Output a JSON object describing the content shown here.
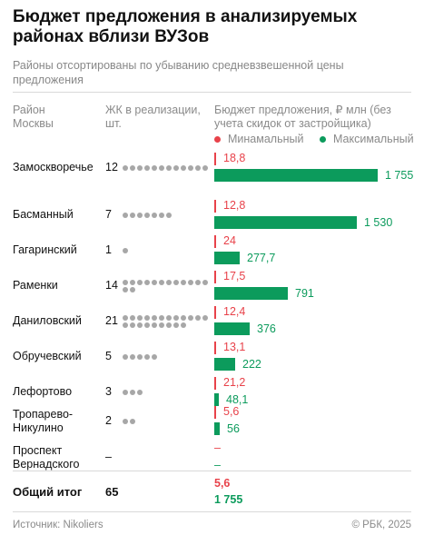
{
  "title": "Бюджет предложения в анализируемых районах вблизи ВУЗов",
  "subtitle": "Районы отсортированы по убыванию средневзвешенной цены предложения",
  "headers": {
    "district": "Район Москвы",
    "complexes": "ЖК в реализации, шт.",
    "budget": "Бюджет предложения, ₽ млн (без учета скидок от застройщика)"
  },
  "legend": {
    "min_label": "Минамальный",
    "max_label": "Максимальный",
    "min_color": "#e8424a",
    "max_color": "#0c9b5c"
  },
  "chart_data": {
    "type": "bar",
    "max_scale": 1755,
    "rows": [
      {
        "name": "Замоскворечье",
        "count": 12,
        "min": 18.8,
        "max": 1755,
        "min_label": "18,8",
        "max_label": "1 755"
      },
      {
        "name": "Басманный",
        "count": 7,
        "min": 12.8,
        "max": 1530,
        "min_label": "12,8",
        "max_label": "1 530"
      },
      {
        "name": "Гагаринский",
        "count": 1,
        "min": 24,
        "max": 277.7,
        "min_label": "24",
        "max_label": "277,7"
      },
      {
        "name": "Раменки",
        "count": 14,
        "min": 17.5,
        "max": 791,
        "min_label": "17,5",
        "max_label": "791"
      },
      {
        "name": "Даниловский",
        "count": 21,
        "min": 12.4,
        "max": 376,
        "min_label": "12,4",
        "max_label": "376"
      },
      {
        "name": "Обручевский",
        "count": 5,
        "min": 13.1,
        "max": 222,
        "min_label": "13,1",
        "max_label": "222"
      },
      {
        "name": "Лефортово",
        "count": 3,
        "min": 21.2,
        "max": 48.1,
        "min_label": "21,2",
        "max_label": "48,1"
      },
      {
        "name": "Тропарево-Никулино",
        "count": 2,
        "min": 5.6,
        "max": 56,
        "min_label": "5,6",
        "max_label": "56"
      },
      {
        "name": "Проспект Вернадского",
        "count": null,
        "min": null,
        "max": null,
        "count_label": "–",
        "min_label": "–",
        "max_label": "–"
      }
    ]
  },
  "total": {
    "label": "Общий итог",
    "count": "65",
    "min": "5,6",
    "max": "1 755"
  },
  "footer": {
    "source": "Источник: Nikoliers",
    "copyright": "© РБК, 2025"
  }
}
